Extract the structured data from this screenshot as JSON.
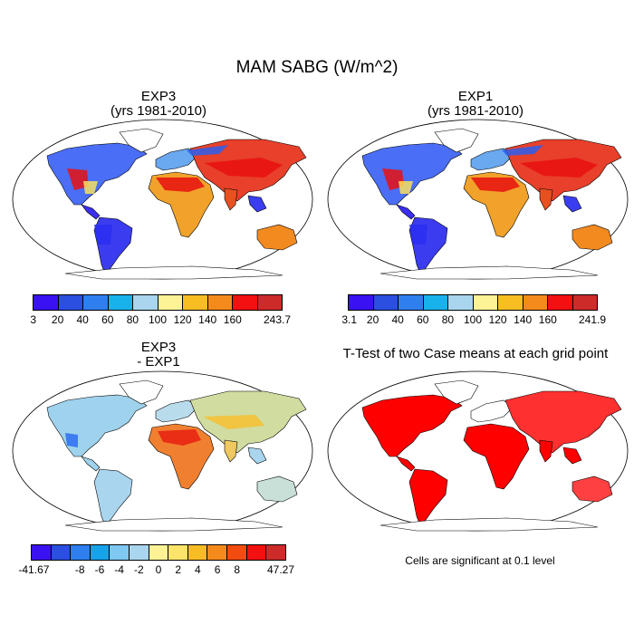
{
  "title": "MAM SABG (W/m^2)",
  "panels": {
    "p1": {
      "line1": "EXP3",
      "line2": "(yrs 1981-2010)"
    },
    "p2": {
      "line1": "EXP1",
      "line2": "(yrs 1981-2010)"
    },
    "p3": {
      "line1": "EXP3",
      "line2": "- EXP1"
    },
    "p4": {
      "line1": "T-Test of two Case means at each grid point"
    }
  },
  "colorbars": {
    "cb1": {
      "labels": [
        "3",
        "20",
        "40",
        "60",
        "80",
        "100",
        "120",
        "140",
        "160",
        "243.7"
      ],
      "colors": [
        "#3a11f0",
        "#2b4fe0",
        "#2f7fee",
        "#17b2ec",
        "#a9d6ee",
        "#fdf396",
        "#f7bd22",
        "#f58a1c",
        "#f21010",
        "#cd2a2a"
      ]
    },
    "cb2": {
      "labels": [
        "3.1",
        "20",
        "40",
        "60",
        "80",
        "100",
        "120",
        "140",
        "160",
        "241.9"
      ],
      "colors": [
        "#3a11f0",
        "#2b4fe0",
        "#2f7fee",
        "#17b2ec",
        "#a9d6ee",
        "#fdf396",
        "#f7bd22",
        "#f58a1c",
        "#f21010",
        "#cd2a2a"
      ]
    },
    "cb3": {
      "labels": [
        "-41.67",
        "-8",
        "-6",
        "-4",
        "-2",
        "0",
        "2",
        "4",
        "6",
        "8",
        "47.27"
      ],
      "colors": [
        "#3a11f0",
        "#2b4fe0",
        "#2f7fee",
        "#17a2ec",
        "#7fc8f2",
        "#a9d6ee",
        "#fdf396",
        "#fce36a",
        "#f7bd22",
        "#f58a1c",
        "#f24c10",
        "#f21010",
        "#cd2a2a"
      ]
    }
  },
  "ttest_note": "Cells are significant at 0.1 level",
  "colors": {
    "land_low": "#3a3ef0",
    "land_mid": "#f5d23c",
    "land_high": "#e8150f",
    "sig": "#ff0000"
  }
}
